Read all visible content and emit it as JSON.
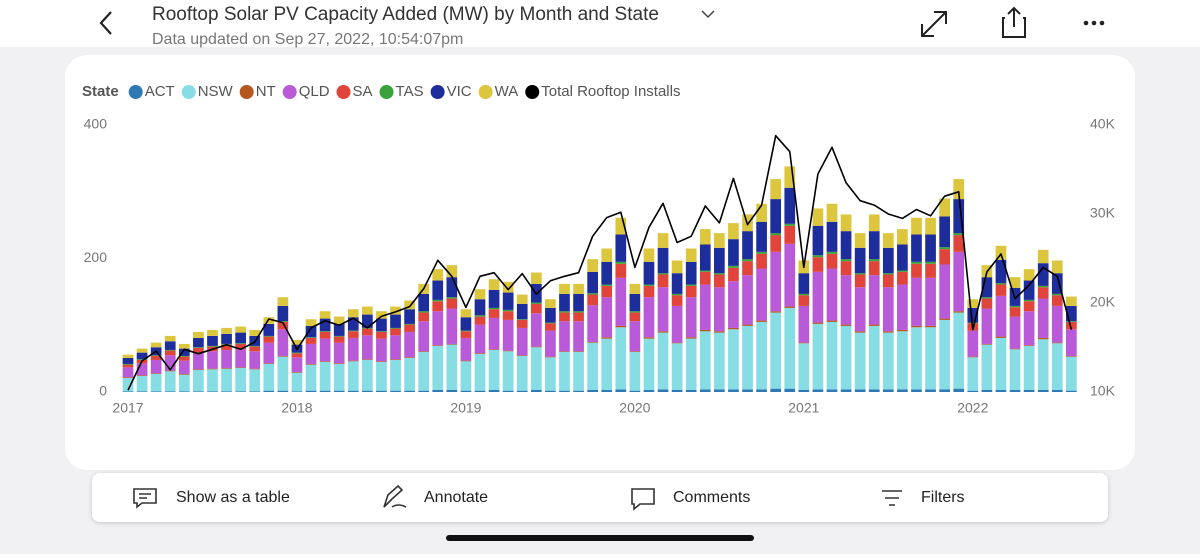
{
  "header": {
    "subtitle": "Data updated on Sep 27, 2022, 10:54:07pm"
  },
  "toolbar": {
    "items": [
      "Show as a table",
      "Annotate",
      "Comments",
      "Filters"
    ]
  },
  "chart_data": {
    "type": "bar",
    "stacked": true,
    "title": "Rooftop Solar PV Capacity Added (MW) by Month and State",
    "legend_title": "State",
    "legend": "top-left",
    "grid": false,
    "categories": [
      "2017",
      null,
      null,
      null,
      null,
      null,
      null,
      null,
      null,
      null,
      null,
      null,
      "2018",
      null,
      null,
      null,
      null,
      null,
      null,
      null,
      null,
      null,
      null,
      null,
      "2019",
      null,
      null,
      null,
      null,
      null,
      null,
      null,
      null,
      null,
      null,
      null,
      "2020",
      null,
      null,
      null,
      null,
      null,
      null,
      null,
      null,
      null,
      null,
      null,
      "2021",
      null,
      null,
      null,
      null,
      null,
      null,
      null,
      null,
      null,
      null,
      null,
      "2022",
      null,
      null,
      null,
      null,
      null,
      null,
      null
    ],
    "ylim": [
      0,
      400
    ],
    "yticks": [
      0,
      200,
      400
    ],
    "y2lim": [
      10000,
      40000
    ],
    "y2ticks": [
      {
        "value": 10000,
        "label": "10K"
      },
      {
        "value": 20000,
        "label": "20K"
      },
      {
        "value": 30000,
        "label": "30K"
      },
      {
        "value": 40000,
        "label": "40K"
      }
    ],
    "series": [
      {
        "name": "ACT",
        "color": "#2f7ab5",
        "values": [
          1,
          1,
          1,
          1,
          1,
          1,
          1,
          1,
          1,
          1,
          2,
          2,
          1,
          2,
          2,
          2,
          2,
          2,
          2,
          2,
          2,
          2,
          3,
          3,
          2,
          2,
          3,
          2,
          2,
          3,
          2,
          2,
          2,
          3,
          3,
          4,
          2,
          3,
          4,
          3,
          3,
          4,
          4,
          4,
          4,
          4,
          5,
          5,
          3,
          4,
          4,
          4,
          4,
          4,
          4,
          4,
          4,
          4,
          4,
          5,
          2,
          3,
          3,
          3,
          3,
          3,
          3,
          2
        ]
      },
      {
        "name": "NSW",
        "color": "#86dde3",
        "values": [
          20,
          23,
          26,
          30,
          25,
          32,
          33,
          34,
          35,
          33,
          40,
          51,
          28,
          39,
          43,
          40,
          44,
          46,
          43,
          46,
          49,
          58,
          66,
          68,
          44,
          55,
          60,
          59,
          52,
          64,
          50,
          58,
          58,
          71,
          77,
          93,
          58,
          77,
          85,
          70,
          77,
          87,
          85,
          90,
          95,
          101,
          114,
          121,
          70,
          98,
          101,
          95,
          85,
          95,
          85,
          87,
          93,
          93,
          104,
          114,
          50,
          68,
          78,
          61,
          66,
          76,
          70,
          51
        ]
      },
      {
        "name": "NT",
        "color": "#b5581f",
        "values": [
          1,
          1,
          1,
          1,
          1,
          1,
          1,
          1,
          1,
          1,
          1,
          1,
          1,
          1,
          1,
          1,
          1,
          1,
          1,
          1,
          1,
          1,
          1,
          1,
          1,
          1,
          1,
          1,
          1,
          1,
          1,
          1,
          1,
          1,
          2,
          2,
          1,
          2,
          2,
          1,
          2,
          2,
          2,
          2,
          2,
          2,
          2,
          2,
          1,
          2,
          2,
          2,
          2,
          2,
          2,
          2,
          2,
          2,
          2,
          2,
          1,
          1,
          2,
          1,
          1,
          2,
          1,
          1
        ]
      },
      {
        "name": "QLD",
        "color": "#b95ad8",
        "values": [
          15,
          18,
          20,
          23,
          20,
          25,
          26,
          27,
          27,
          26,
          31,
          40,
          22,
          30,
          34,
          31,
          34,
          36,
          34,
          36,
          38,
          45,
          51,
          53,
          34,
          43,
          47,
          46,
          41,
          50,
          39,
          45,
          45,
          55,
          60,
          72,
          45,
          60,
          66,
          55,
          60,
          68,
          66,
          70,
          74,
          78,
          89,
          94,
          55,
          76,
          78,
          74,
          66,
          74,
          66,
          68,
          72,
          72,
          81,
          89,
          39,
          53,
          61,
          48,
          51,
          59,
          55,
          40
        ]
      },
      {
        "name": "SA",
        "color": "#e0443a",
        "values": [
          4,
          5,
          6,
          7,
          6,
          7,
          7,
          8,
          8,
          7,
          9,
          11,
          6,
          9,
          10,
          9,
          10,
          10,
          10,
          10,
          11,
          13,
          15,
          15,
          10,
          12,
          13,
          13,
          12,
          14,
          11,
          13,
          13,
          16,
          17,
          21,
          13,
          17,
          19,
          16,
          17,
          19,
          19,
          20,
          21,
          22,
          25,
          27,
          16,
          22,
          22,
          21,
          19,
          21,
          19,
          19,
          21,
          21,
          23,
          25,
          11,
          15,
          17,
          14,
          15,
          17,
          16,
          11
        ]
      },
      {
        "name": "TAS",
        "color": "#3aa23a",
        "values": [
          1,
          1,
          1,
          1,
          1,
          1,
          1,
          1,
          1,
          1,
          1,
          1,
          1,
          1,
          1,
          1,
          1,
          1,
          1,
          1,
          1,
          2,
          2,
          2,
          1,
          2,
          2,
          2,
          1,
          2,
          1,
          2,
          2,
          2,
          2,
          3,
          2,
          2,
          2,
          2,
          2,
          2,
          2,
          3,
          3,
          3,
          3,
          3,
          2,
          3,
          3,
          3,
          2,
          3,
          2,
          2,
          3,
          3,
          3,
          3,
          1,
          2,
          2,
          2,
          2,
          2,
          2,
          1
        ]
      },
      {
        "name": "VIC",
        "color": "#1e2d9c",
        "values": [
          9,
          10,
          12,
          13,
          11,
          14,
          15,
          15,
          16,
          15,
          18,
          23,
          12,
          17,
          19,
          18,
          20,
          20,
          19,
          20,
          22,
          26,
          29,
          30,
          20,
          24,
          27,
          26,
          23,
          28,
          22,
          26,
          26,
          32,
          34,
          41,
          26,
          34,
          38,
          31,
          34,
          39,
          38,
          40,
          42,
          45,
          51,
          54,
          31,
          44,
          45,
          42,
          38,
          42,
          38,
          39,
          41,
          41,
          46,
          51,
          22,
          30,
          35,
          27,
          29,
          34,
          31,
          23
        ]
      },
      {
        "name": "WA",
        "color": "#dcc63d",
        "values": [
          5,
          6,
          7,
          8,
          7,
          9,
          9,
          9,
          9,
          9,
          10,
          13,
          7,
          10,
          11,
          11,
          12,
          12,
          11,
          12,
          13,
          15,
          17,
          18,
          12,
          15,
          16,
          16,
          14,
          17,
          13,
          15,
          15,
          19,
          20,
          25,
          15,
          20,
          22,
          19,
          20,
          23,
          22,
          24,
          25,
          27,
          30,
          32,
          19,
          26,
          27,
          25,
          22,
          25,
          22,
          23,
          25,
          25,
          27,
          30,
          13,
          18,
          21,
          16,
          17,
          20,
          19,
          14
        ]
      },
      {
        "name": "Total Rooftop Installs",
        "color": "#000000",
        "type": "line",
        "axis": "y2",
        "values": [
          10200,
          13500,
          14600,
          12500,
          14800,
          14300,
          14800,
          15300,
          14800,
          15600,
          18200,
          17800,
          14800,
          17200,
          18000,
          17500,
          18300,
          17200,
          18500,
          19000,
          19600,
          21600,
          24800,
          23000,
          19500,
          23000,
          23400,
          21500,
          23300,
          21000,
          22500,
          23000,
          23400,
          27500,
          29600,
          30200,
          24000,
          28500,
          31200,
          26800,
          27500,
          30900,
          29000,
          34000,
          28800,
          31000,
          38800,
          37000,
          24000,
          34500,
          37500,
          33500,
          31500,
          31000,
          30000,
          29500,
          30500,
          29800,
          32000,
          32500,
          17000,
          23500,
          25500,
          20500,
          22000,
          24000,
          23000,
          17000
        ]
      }
    ]
  }
}
